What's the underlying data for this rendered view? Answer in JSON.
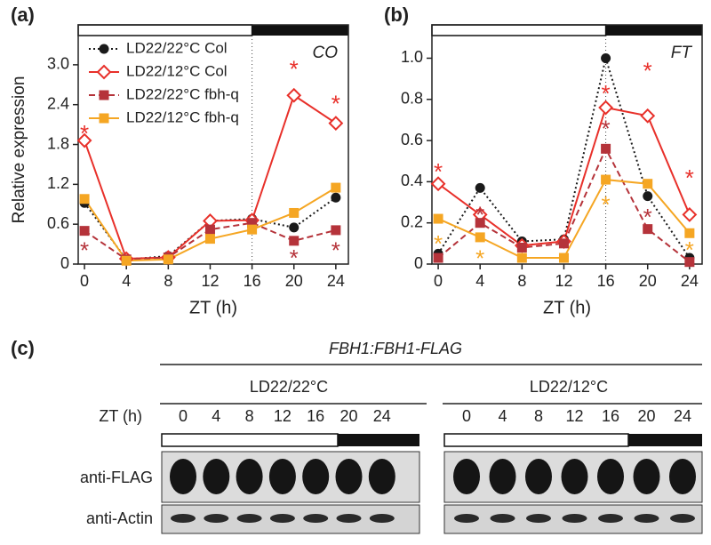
{
  "chart_data": [
    {
      "type": "line",
      "panel": "(a)",
      "title": "CO",
      "xlabel": "ZT (h)",
      "ylabel": "Relative expression",
      "xlim": [
        -0.6,
        25.2
      ],
      "xticks": [
        0,
        4,
        8,
        12,
        16,
        20,
        24
      ],
      "ylim": [
        0,
        3.44
      ],
      "yticks": [
        0,
        {
          "value": 0.6,
          "label": "0.6"
        },
        {
          "value": 1.2,
          "label": "1.2"
        },
        {
          "value": 1.8,
          "label": "1.8"
        },
        {
          "value": 2.4,
          "label": "2.4"
        },
        {
          "value": 3,
          "label": "3.0"
        }
      ],
      "day_night_boundary": 16,
      "legend": "upper left",
      "x": [
        0,
        4,
        8,
        12,
        16,
        20,
        24
      ],
      "series": [
        {
          "name": "LD22/22°C Col",
          "color": "#1a1a1a",
          "marker": "circle",
          "linestyle": "dotted",
          "values": [
            0.92,
            0.07,
            0.12,
            0.65,
            0.68,
            0.55,
            1.0
          ]
        },
        {
          "name": "LD22/12°C Col",
          "color": "#e8302a",
          "marker": "diamond-open",
          "linestyle": "solid",
          "values": [
            1.86,
            0.08,
            0.1,
            0.65,
            0.66,
            2.54,
            2.12
          ]
        },
        {
          "name": "LD22/22°C fbh-q",
          "color": "#b5333a",
          "marker": "square",
          "linestyle": "dashed",
          "values": [
            0.5,
            0.07,
            0.1,
            0.52,
            0.62,
            0.35,
            0.51
          ]
        },
        {
          "name": "LD22/12°C fbh-q",
          "color": "#f5a623",
          "marker": "square",
          "linestyle": "solid",
          "values": [
            0.98,
            0.05,
            0.07,
            0.38,
            0.52,
            0.77,
            1.15
          ]
        }
      ],
      "annotations": [
        {
          "text": "*",
          "x": 0,
          "y": 2.03,
          "color": "#e8302a"
        },
        {
          "text": "*",
          "x": 0,
          "y": 0.27,
          "color": "#b5333a"
        },
        {
          "text": "*",
          "x": 20,
          "y": 3.0,
          "color": "#e8302a"
        },
        {
          "text": "*",
          "x": 20,
          "y": 0.16,
          "color": "#b5333a"
        },
        {
          "text": "*",
          "x": 24,
          "y": 2.48,
          "color": "#e8302a"
        },
        {
          "text": "*",
          "x": 24,
          "y": 0.27,
          "color": "#b5333a"
        }
      ]
    },
    {
      "type": "line",
      "panel": "(b)",
      "title": "FT",
      "xlabel": "ZT (h)",
      "xlim": [
        -0.6,
        25.2
      ],
      "xticks": [
        0,
        4,
        8,
        12,
        16,
        20,
        24
      ],
      "ylim": [
        0,
        1.11
      ],
      "yticks": [
        0,
        {
          "value": 0.2,
          "label": "0.2"
        },
        {
          "value": 0.4,
          "label": "0.4"
        },
        {
          "value": 0.6,
          "label": "0.6"
        },
        {
          "value": 0.8,
          "label": "0.8"
        },
        {
          "value": 1,
          "label": "1.0"
        }
      ],
      "day_night_boundary": 16,
      "x": [
        0,
        4,
        8,
        12,
        16,
        20,
        24
      ],
      "series": [
        {
          "color": "#1a1a1a",
          "marker": "circle",
          "linestyle": "dotted",
          "values": [
            0.05,
            0.37,
            0.11,
            0.12,
            1.0,
            0.33,
            0.03
          ]
        },
        {
          "color": "#e8302a",
          "marker": "diamond-open",
          "linestyle": "solid",
          "values": [
            0.39,
            0.24,
            0.09,
            0.11,
            0.76,
            0.72,
            0.24
          ]
        },
        {
          "color": "#b5333a",
          "marker": "square",
          "linestyle": "dashed",
          "values": [
            0.03,
            0.2,
            0.08,
            0.1,
            0.56,
            0.17,
            0.01
          ]
        },
        {
          "color": "#f5a623",
          "marker": "square",
          "linestyle": "solid",
          "values": [
            0.22,
            0.13,
            0.03,
            0.03,
            0.41,
            0.39,
            0.15
          ]
        }
      ],
      "annotations": [
        {
          "text": "*",
          "x": 0,
          "y": 0.47,
          "color": "#e8302a"
        },
        {
          "text": "*",
          "x": 0,
          "y": 0.12,
          "color": "#f5a623"
        },
        {
          "text": "*",
          "x": 4,
          "y": 0.26,
          "color": "#b5333a"
        },
        {
          "text": "*",
          "x": 4,
          "y": 0.05,
          "color": "#f5a623"
        },
        {
          "text": "*",
          "x": 16,
          "y": 0.85,
          "color": "#e8302a"
        },
        {
          "text": "*",
          "x": 16,
          "y": 0.68,
          "color": "#b5333a"
        },
        {
          "text": "*",
          "x": 16,
          "y": 0.31,
          "color": "#f5a623"
        },
        {
          "text": "*",
          "x": 20,
          "y": 0.96,
          "color": "#e8302a"
        },
        {
          "text": "*",
          "x": 20,
          "y": 0.25,
          "color": "#b5333a"
        },
        {
          "text": "*",
          "x": 24,
          "y": 0.44,
          "color": "#e8302a"
        },
        {
          "text": "*",
          "x": 24,
          "y": 0.09,
          "color": "#f5a623"
        }
      ]
    }
  ],
  "blot": {
    "panel": "(c)",
    "title": "FBH1:FBH1-FLAG",
    "zt_label": "ZT (h)",
    "groups": [
      "LD22/22°C",
      "LD22/12°C"
    ],
    "lanes": [
      "0",
      "4",
      "8",
      "12",
      "16",
      "20",
      "24"
    ],
    "rows": [
      "anti-FLAG",
      "anti-Actin"
    ]
  }
}
